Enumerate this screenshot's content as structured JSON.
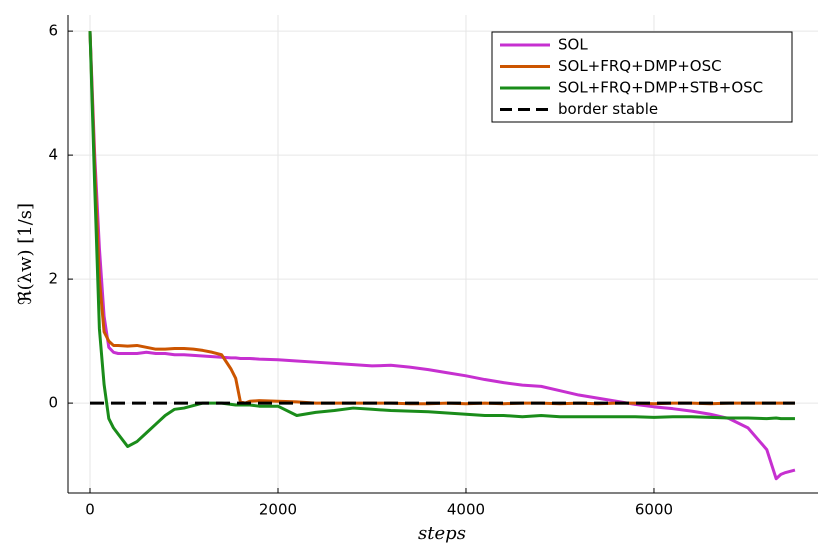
{
  "chart_data": {
    "type": "line",
    "x_label": "steps",
    "y_label": "ℜ(λw) [1/s]",
    "x": [
      0,
      50,
      100,
      150,
      200,
      250,
      300,
      400,
      500,
      600,
      700,
      800,
      900,
      1000,
      1100,
      1200,
      1300,
      1400,
      1500,
      1550,
      1600,
      1650,
      1700,
      1800,
      2000,
      2200,
      2400,
      2600,
      2800,
      3000,
      3200,
      3400,
      3600,
      3800,
      4000,
      4200,
      4400,
      4600,
      4800,
      5000,
      5200,
      5400,
      5600,
      5800,
      6000,
      6200,
      6400,
      6600,
      6800,
      7000,
      7200,
      7300,
      7350,
      7400,
      7500
    ],
    "series": [
      {
        "name": "SOL",
        "color": "#c630d0",
        "values": [
          6,
          4.0,
          2.5,
          1.4,
          0.9,
          0.82,
          0.8,
          0.8,
          0.8,
          0.82,
          0.8,
          0.8,
          0.78,
          0.78,
          0.77,
          0.76,
          0.75,
          0.74,
          0.73,
          0.73,
          0.72,
          0.72,
          0.72,
          0.71,
          0.7,
          0.68,
          0.66,
          0.64,
          0.62,
          0.6,
          0.61,
          0.58,
          0.54,
          0.49,
          0.44,
          0.38,
          0.33,
          0.29,
          0.27,
          0.2,
          0.13,
          0.08,
          0.03,
          -0.02,
          -0.06,
          -0.09,
          -0.13,
          -0.18,
          -0.25,
          -0.4,
          -0.75,
          -1.22,
          -1.15,
          -1.12,
          -1.08
        ]
      },
      {
        "name": "SOL+FRQ+DMP+OSC",
        "color": "#cc5500",
        "values": [
          6,
          3.8,
          2.0,
          1.15,
          1.0,
          0.93,
          0.93,
          0.92,
          0.93,
          0.9,
          0.87,
          0.87,
          0.88,
          0.88,
          0.87,
          0.85,
          0.82,
          0.78,
          0.55,
          0.4,
          0.02,
          0.0,
          0.03,
          0.04,
          0.03,
          0.02,
          0.0,
          0.0,
          0.0,
          0.0,
          0.0,
          -0.01,
          -0.01,
          0.0,
          -0.01,
          0.0,
          -0.01,
          0.0,
          0.0,
          -0.01,
          0.0,
          -0.01,
          0.0,
          0.0,
          -0.01,
          0.0,
          0.0,
          -0.01,
          0.0,
          0.0,
          0.0,
          0.0,
          0.0,
          0.0,
          0.0
        ]
      },
      {
        "name": "SOL+FRQ+DMP+STB+OSC",
        "color": "#1a8c1a",
        "values": [
          6,
          3.5,
          1.2,
          0.3,
          -0.25,
          -0.4,
          -0.5,
          -0.7,
          -0.62,
          -0.48,
          -0.34,
          -0.2,
          -0.1,
          -0.08,
          -0.04,
          0.0,
          0.0,
          0.0,
          -0.02,
          -0.03,
          -0.03,
          -0.03,
          -0.03,
          -0.05,
          -0.05,
          -0.2,
          -0.15,
          -0.12,
          -0.08,
          -0.1,
          -0.12,
          -0.13,
          -0.14,
          -0.16,
          -0.18,
          -0.2,
          -0.2,
          -0.22,
          -0.2,
          -0.22,
          -0.22,
          -0.22,
          -0.22,
          -0.22,
          -0.23,
          -0.22,
          -0.22,
          -0.23,
          -0.24,
          -0.24,
          -0.25,
          -0.24,
          -0.25,
          -0.25,
          -0.25
        ]
      },
      {
        "name": "border stable",
        "color": "#000000",
        "dashed": true,
        "x": [
          0,
          7500
        ],
        "values": [
          0,
          0
        ]
      }
    ],
    "xlim": [
      -234,
      7745
    ],
    "ylim": [
      -1.45,
      6.26
    ],
    "xticks": [
      0,
      2000,
      4000,
      6000
    ],
    "yticks": [
      0,
      2,
      4,
      6
    ],
    "grid": true,
    "legend": "top right"
  }
}
